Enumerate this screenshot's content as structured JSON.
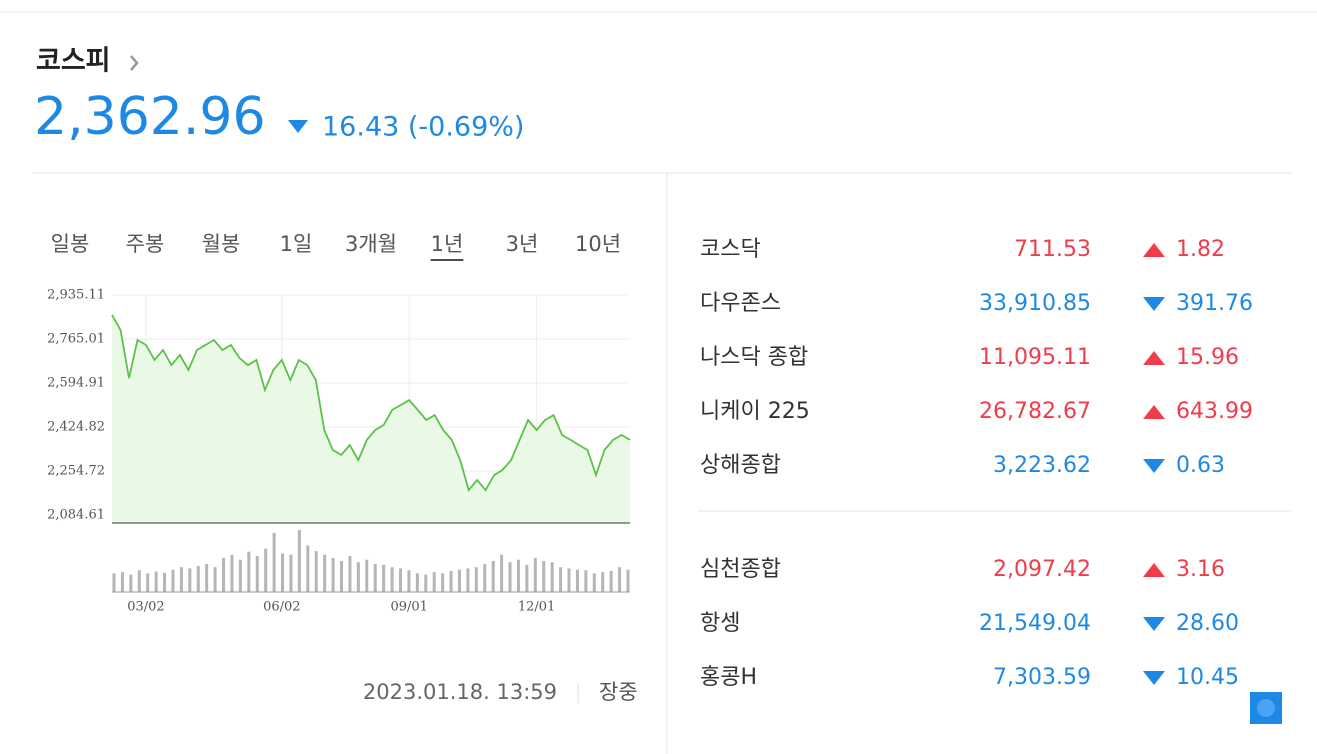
{
  "header": {
    "title": "코스피",
    "value": "2,362.96",
    "change": "16.43 (-0.69%)",
    "direction": "down"
  },
  "tabs": [
    {
      "label": "일봉",
      "selected": false
    },
    {
      "label": "주봉",
      "selected": false
    },
    {
      "label": "월봉",
      "selected": false
    },
    {
      "label": "1일",
      "selected": false
    },
    {
      "label": "3개월",
      "selected": false
    },
    {
      "label": "1년",
      "selected": true
    },
    {
      "label": "3년",
      "selected": false
    },
    {
      "label": "10년",
      "selected": false
    }
  ],
  "chart_data": [
    {
      "type": "line",
      "color": "#5cc14a",
      "fill": "#eaf9e6",
      "grid": true,
      "categories": [
        null,
        null,
        null,
        null,
        "03/02",
        null,
        null,
        null,
        null,
        null,
        null,
        null,
        null,
        null,
        null,
        null,
        null,
        null,
        null,
        null,
        "06/02",
        null,
        null,
        null,
        null,
        null,
        null,
        null,
        null,
        null,
        null,
        null,
        null,
        null,
        null,
        "09/01",
        null,
        null,
        null,
        null,
        null,
        null,
        null,
        null,
        null,
        null,
        null,
        null,
        null,
        null,
        "12/01",
        null,
        null,
        null,
        null,
        null,
        null,
        null,
        null,
        null,
        null,
        null
      ],
      "values": [
        2858,
        2800,
        2614,
        2761,
        2742,
        2684,
        2722,
        2664,
        2703,
        2645,
        2722,
        2742,
        2761,
        2722,
        2742,
        2692,
        2664,
        2684,
        2568,
        2645,
        2684,
        2606,
        2684,
        2664,
        2606,
        2413,
        2336,
        2317,
        2355,
        2297,
        2375,
        2413,
        2433,
        2491,
        2510,
        2529,
        2491,
        2452,
        2471,
        2413,
        2375,
        2297,
        2181,
        2220,
        2181,
        2239,
        2259,
        2297,
        2375,
        2452,
        2413,
        2452,
        2471,
        2394,
        2375,
        2355,
        2336,
        2239,
        2336,
        2375,
        2394,
        2375
      ],
      "ylim": [
        2053.7,
        2935.11
      ],
      "yticks": [
        {
          "value": 2935.11,
          "label": "2,935.11"
        },
        {
          "value": 2765.01,
          "label": "2,765.01"
        },
        {
          "value": 2594.91,
          "label": "2,594.91"
        },
        {
          "value": 2424.82,
          "label": "2,424.82"
        },
        {
          "value": 2254.72,
          "label": "2,254.72"
        },
        {
          "value": 2084.61,
          "label": "2,084.61"
        }
      ]
    },
    {
      "type": "bar",
      "color": "#b5b5b5",
      "ylim": [
        0,
        100
      ],
      "values": [
        30,
        32,
        28,
        35,
        30,
        33,
        31,
        36,
        40,
        38,
        42,
        45,
        40,
        55,
        60,
        52,
        65,
        58,
        70,
        95,
        62,
        60,
        100,
        75,
        66,
        60,
        55,
        50,
        58,
        48,
        52,
        45,
        44,
        40,
        38,
        35,
        30,
        28,
        32,
        30,
        34,
        36,
        38,
        40,
        45,
        50,
        60,
        48,
        52,
        44,
        55,
        50,
        48,
        40,
        38,
        36,
        35,
        30,
        32,
        34,
        40,
        36
      ]
    }
  ],
  "indices": [
    {
      "name": "코스닥",
      "value": "711.53",
      "change": "1.82",
      "direction": "up"
    },
    {
      "name": "다우존스",
      "value": "33,910.85",
      "change": "391.76",
      "direction": "down"
    },
    {
      "name": "나스닥 종합",
      "value": "11,095.11",
      "change": "15.96",
      "direction": "up"
    },
    {
      "name": "니케이 225",
      "value": "26,782.67",
      "change": "643.99",
      "direction": "up"
    },
    {
      "name": "상해종합",
      "value": "3,223.62",
      "change": "0.63",
      "direction": "down"
    },
    {
      "name": "심천종합",
      "value": "2,097.42",
      "change": "3.16",
      "direction": "up"
    },
    {
      "name": "항셍",
      "value": "21,549.04",
      "change": "28.60",
      "direction": "down"
    },
    {
      "name": "홍콩H",
      "value": "7,303.59",
      "change": "10.45",
      "direction": "down"
    }
  ],
  "footer": {
    "time": "2023.01.18. 13:59",
    "status": "장중"
  }
}
